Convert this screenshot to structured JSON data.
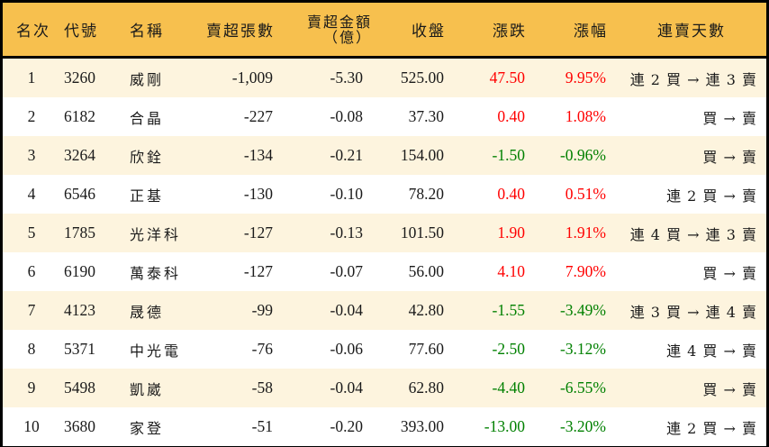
{
  "colors": {
    "header_bg": "#f7c04e",
    "row_odd_bg": "#fdf4de",
    "row_even_bg": "#ffffff",
    "up": "#ff0000",
    "down": "#008000",
    "border": "#000000"
  },
  "table": {
    "headers": {
      "rank": "名次",
      "code": "代號",
      "name": "名稱",
      "net_sell_lots": "賣超張數",
      "net_sell_amount_line1": "賣超金額",
      "net_sell_amount_line2": "（億）",
      "close": "收盤",
      "change": "漲跌",
      "change_pct": "漲幅",
      "streak": "連賣天數"
    },
    "rows": [
      {
        "rank": "1",
        "code": "3260",
        "name": "威剛",
        "lots": "-1,009",
        "amount": "-5.30",
        "close": "525.00",
        "change": "47.50",
        "pct": "9.95%",
        "dir": "up",
        "streak": "連 2 買 → 連 3 賣"
      },
      {
        "rank": "2",
        "code": "6182",
        "name": "合晶",
        "lots": "-227",
        "amount": "-0.08",
        "close": "37.30",
        "change": "0.40",
        "pct": "1.08%",
        "dir": "up",
        "streak": "買 → 賣"
      },
      {
        "rank": "3",
        "code": "3264",
        "name": "欣銓",
        "lots": "-134",
        "amount": "-0.21",
        "close": "154.00",
        "change": "-1.50",
        "pct": "-0.96%",
        "dir": "down",
        "streak": "買 → 賣"
      },
      {
        "rank": "4",
        "code": "6546",
        "name": "正基",
        "lots": "-130",
        "amount": "-0.10",
        "close": "78.20",
        "change": "0.40",
        "pct": "0.51%",
        "dir": "up",
        "streak": "連 2 買 → 賣"
      },
      {
        "rank": "5",
        "code": "1785",
        "name": "光洋科",
        "lots": "-127",
        "amount": "-0.13",
        "close": "101.50",
        "change": "1.90",
        "pct": "1.91%",
        "dir": "up",
        "streak": "連 4 買 → 連 3 賣"
      },
      {
        "rank": "6",
        "code": "6190",
        "name": "萬泰科",
        "lots": "-127",
        "amount": "-0.07",
        "close": "56.00",
        "change": "4.10",
        "pct": "7.90%",
        "dir": "up",
        "streak": "買 → 賣"
      },
      {
        "rank": "7",
        "code": "4123",
        "name": "晟德",
        "lots": "-99",
        "amount": "-0.04",
        "close": "42.80",
        "change": "-1.55",
        "pct": "-3.49%",
        "dir": "down",
        "streak": "連 3 買 → 連 4 賣"
      },
      {
        "rank": "8",
        "code": "5371",
        "name": "中光電",
        "lots": "-76",
        "amount": "-0.06",
        "close": "77.60",
        "change": "-2.50",
        "pct": "-3.12%",
        "dir": "down",
        "streak": "連 4 買 → 賣"
      },
      {
        "rank": "9",
        "code": "5498",
        "name": "凱崴",
        "lots": "-58",
        "amount": "-0.04",
        "close": "62.80",
        "change": "-4.40",
        "pct": "-6.55%",
        "dir": "down",
        "streak": "買 → 賣"
      },
      {
        "rank": "10",
        "code": "3680",
        "name": "家登",
        "lots": "-51",
        "amount": "-0.20",
        "close": "393.00",
        "change": "-13.00",
        "pct": "-3.20%",
        "dir": "down",
        "streak": "連 2 買 → 賣"
      }
    ]
  }
}
